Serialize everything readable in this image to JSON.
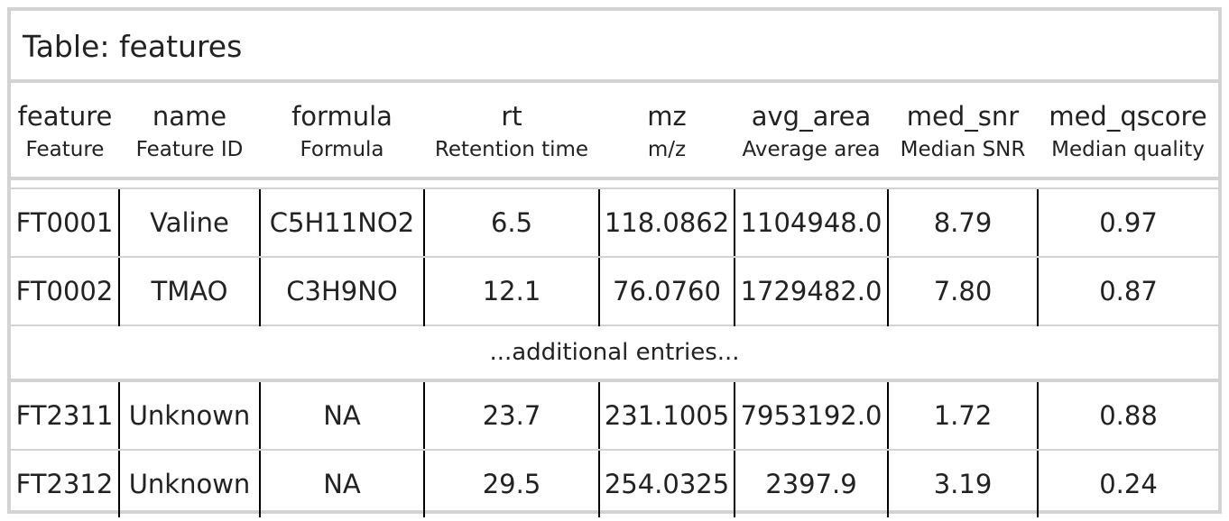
{
  "table": {
    "title": "Table: features",
    "columns": [
      {
        "name": "feature",
        "label": "Feature"
      },
      {
        "name": "name",
        "label": "Feature ID"
      },
      {
        "name": "formula",
        "label": "Formula"
      },
      {
        "name": "rt",
        "label": "Retention time"
      },
      {
        "name": "mz",
        "label": "m/z"
      },
      {
        "name": "avg_area",
        "label": "Average area"
      },
      {
        "name": "med_snr",
        "label": "Median SNR"
      },
      {
        "name": "med_qscore",
        "label": "Median quality"
      }
    ],
    "rows_top": [
      [
        "FT0001",
        "Valine",
        "C5H11NO2",
        "6.5",
        "118.0862",
        "1104948.0",
        "8.79",
        "0.97"
      ],
      [
        "FT0002",
        "TMAO",
        "C3H9NO",
        "12.1",
        "76.0760",
        "1729482.0",
        "7.80",
        "0.87"
      ]
    ],
    "ellipsis": "...additional entries...",
    "rows_bottom": [
      [
        "FT2311",
        "Unknown",
        "NA",
        "23.7",
        "231.1005",
        "7953192.0",
        "1.72",
        "0.88"
      ],
      [
        "FT2312",
        "Unknown",
        "NA",
        "29.5",
        "254.0325",
        "2397.9",
        "3.19",
        "0.24"
      ]
    ]
  }
}
